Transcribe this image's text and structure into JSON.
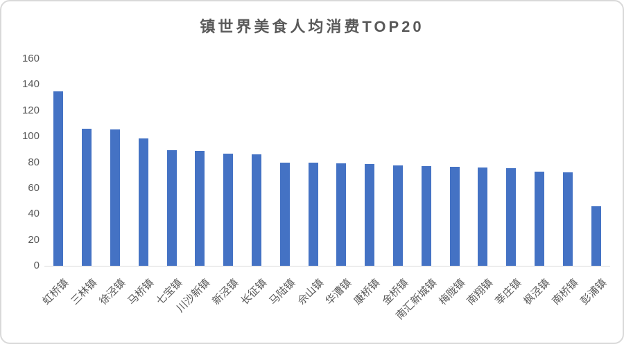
{
  "chart_data": {
    "type": "bar",
    "title": "镇世界美食人均消费TOP20",
    "categories": [
      "虹桥镇",
      "三林镇",
      "徐泾镇",
      "马桥镇",
      "七宝镇",
      "川沙新镇",
      "新泾镇",
      "长征镇",
      "马陆镇",
      "佘山镇",
      "华漕镇",
      "康桥镇",
      "金桥镇",
      "南汇新城镇",
      "梅陇镇",
      "南翔镇",
      "莘庄镇",
      "枫泾镇",
      "南桥镇",
      "彭浦镇"
    ],
    "values": [
      135,
      106,
      105.5,
      98.5,
      89.5,
      89,
      86.5,
      86,
      80,
      79.5,
      79,
      78.5,
      77.5,
      77,
      76.5,
      76,
      75.5,
      73,
      72.5,
      46
    ],
    "xlabel": "",
    "ylabel": "",
    "ylim": [
      0,
      160
    ],
    "ytick_step": 20,
    "ytick_labels": [
      "0",
      "20",
      "40",
      "60",
      "80",
      "100",
      "120",
      "140",
      "160"
    ],
    "grid": false,
    "legend": null,
    "x_label_rotation_deg": -45,
    "colors": {
      "bar": "#4472C4",
      "axis_line": "#D9D9D9",
      "text": "#595959",
      "title_text": "#595959",
      "frame_border": "#D9D9D9",
      "background": "#FFFFFF"
    }
  }
}
